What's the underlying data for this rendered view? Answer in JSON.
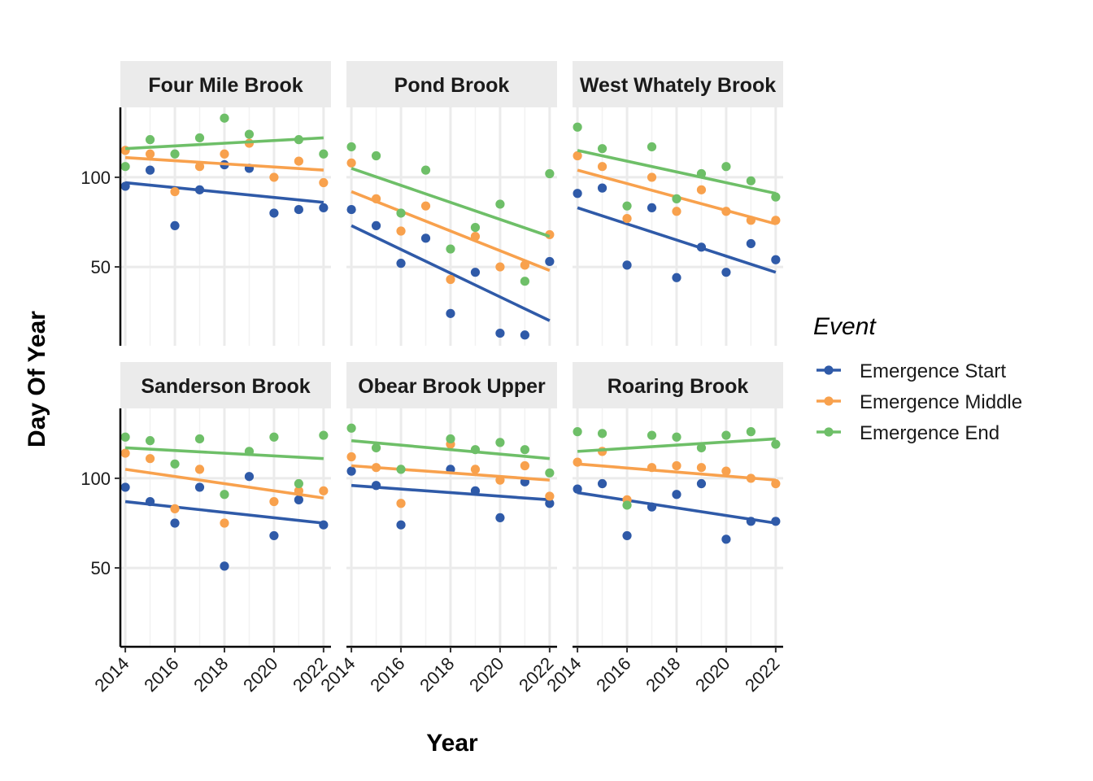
{
  "chart_data": {
    "type": "scatter",
    "xlabel": "Year",
    "ylabel": "Day Of Year",
    "xlim": [
      2013.8,
      2022.3
    ],
    "ylim": [
      6,
      139
    ],
    "x_ticks": [
      2014,
      2016,
      2018,
      2020,
      2022
    ],
    "y_ticks": [
      50,
      100
    ],
    "grid": true,
    "trend_lines": "linear fit per series",
    "legend": {
      "title": "Event",
      "position": "right",
      "entries": [
        {
          "name": "Emergence Start",
          "color": "#2F5AA8"
        },
        {
          "name": "Emergence Middle",
          "color": "#F8A14D"
        },
        {
          "name": "Emergence End",
          "color": "#6EBF68"
        }
      ]
    },
    "x": [
      2014,
      2015,
      2016,
      2017,
      2018,
      2019,
      2020,
      2021,
      2022
    ],
    "panels": [
      {
        "title": "Four Mile Brook",
        "series": [
          {
            "name": "Emergence Start",
            "values": [
              95,
              104,
              73,
              93,
              107,
              105,
              80,
              82,
              83
            ],
            "trend": [
              97,
              86
            ]
          },
          {
            "name": "Emergence Middle",
            "values": [
              115,
              113,
              92,
              106,
              113,
              119,
              100,
              109,
              97
            ],
            "trend": [
              111,
              104
            ]
          },
          {
            "name": "Emergence End",
            "values": [
              106,
              121,
              113,
              122,
              133,
              124,
              null,
              121,
              113
            ],
            "trend": [
              116,
              122
            ]
          }
        ]
      },
      {
        "title": "Pond Brook",
        "series": [
          {
            "name": "Emergence Start",
            "values": [
              82,
              73,
              52,
              66,
              24,
              47,
              13,
              12,
              53
            ],
            "trend": [
              73,
              20
            ]
          },
          {
            "name": "Emergence Middle",
            "values": [
              108,
              88,
              70,
              84,
              43,
              67,
              50,
              51,
              68
            ],
            "trend": [
              92,
              48
            ]
          },
          {
            "name": "Emergence End",
            "values": [
              117,
              112,
              80,
              104,
              60,
              72,
              85,
              42,
              102
            ],
            "trend": [
              105,
              67
            ]
          }
        ]
      },
      {
        "title": "West Whately Brook",
        "series": [
          {
            "name": "Emergence Start",
            "values": [
              91,
              94,
              51,
              83,
              44,
              61,
              47,
              63,
              54
            ],
            "trend": [
              83,
              47
            ]
          },
          {
            "name": "Emergence Middle",
            "values": [
              112,
              106,
              77,
              100,
              81,
              93,
              81,
              76,
              76
            ],
            "trend": [
              104,
              74
            ]
          },
          {
            "name": "Emergence End",
            "values": [
              128,
              116,
              84,
              117,
              88,
              102,
              106,
              98,
              89
            ],
            "trend": [
              115,
              91
            ]
          }
        ]
      },
      {
        "title": "Sanderson Brook",
        "series": [
          {
            "name": "Emergence Start",
            "values": [
              95,
              87,
              75,
              95,
              51,
              101,
              68,
              88,
              74
            ],
            "trend": [
              87,
              75
            ]
          },
          {
            "name": "Emergence Middle",
            "values": [
              114,
              111,
              83,
              105,
              75,
              null,
              87,
              93,
              93
            ],
            "trend": [
              105,
              89
            ]
          },
          {
            "name": "Emergence End",
            "values": [
              123,
              121,
              108,
              122,
              91,
              115,
              123,
              97,
              124
            ],
            "trend": [
              117,
              111
            ]
          }
        ]
      },
      {
        "title": "Obear Brook Upper",
        "series": [
          {
            "name": "Emergence Start",
            "values": [
              104,
              96,
              74,
              null,
              105,
              93,
              78,
              98,
              86
            ],
            "trend": [
              96,
              88
            ]
          },
          {
            "name": "Emergence Middle",
            "values": [
              112,
              106,
              86,
              null,
              119,
              105,
              99,
              107,
              90
            ],
            "trend": [
              107,
              99
            ]
          },
          {
            "name": "Emergence End",
            "values": [
              128,
              117,
              105,
              null,
              122,
              116,
              120,
              116,
              103
            ],
            "trend": [
              121,
              111
            ]
          }
        ]
      },
      {
        "title": "Roaring Brook",
        "series": [
          {
            "name": "Emergence Start",
            "values": [
              94,
              97,
              68,
              84,
              91,
              97,
              66,
              76,
              76
            ],
            "trend": [
              92,
              75
            ]
          },
          {
            "name": "Emergence Middle",
            "values": [
              109,
              115,
              88,
              106,
              107,
              106,
              104,
              100,
              97
            ],
            "trend": [
              108,
              99
            ]
          },
          {
            "name": "Emergence End",
            "values": [
              126,
              125,
              85,
              124,
              123,
              117,
              124,
              126,
              119
            ],
            "trend": [
              115,
              122
            ]
          }
        ]
      }
    ]
  }
}
